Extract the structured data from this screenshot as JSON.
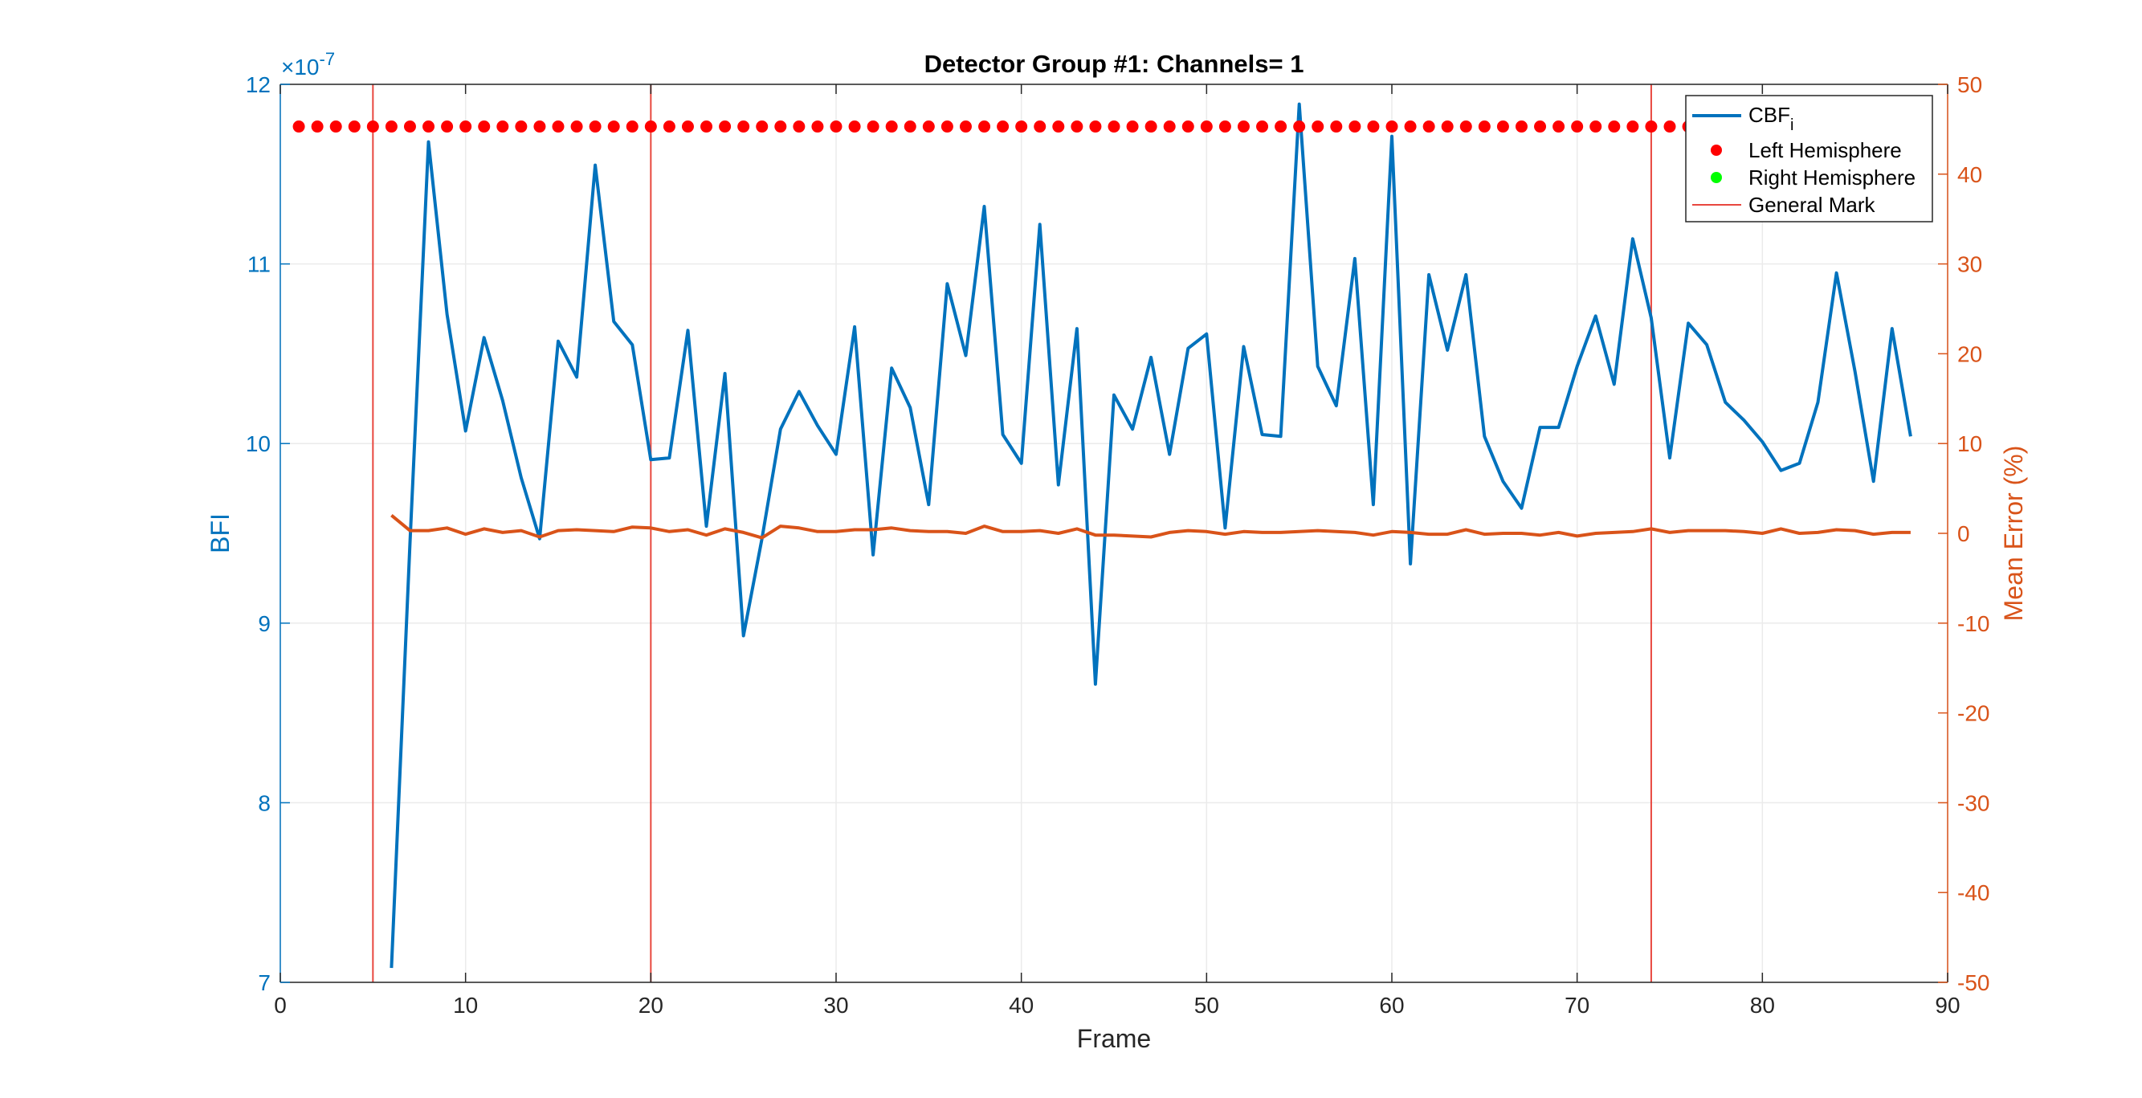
{
  "chart_data": {
    "type": "line",
    "title": "Detector Group #1: Channels= 1",
    "xlabel": "Frame",
    "xlim": [
      0,
      90
    ],
    "x_ticks": [
      "0",
      "10",
      "20",
      "30",
      "40",
      "50",
      "60",
      "70",
      "80",
      "90"
    ],
    "left_axis": {
      "label": "BFI",
      "ylim": [
        7,
        12
      ],
      "ticks": [
        "7",
        "8",
        "9",
        "10",
        "11",
        "12"
      ],
      "exponent_base": "×10",
      "exponent_power": "-7",
      "color": "#0072BD"
    },
    "right_axis": {
      "label": "Mean Error (%)",
      "ylim": [
        -50,
        50
      ],
      "ticks": [
        "-50",
        "-40",
        "-30",
        "-20",
        "-10",
        "0",
        "10",
        "20",
        "30",
        "40",
        "50"
      ],
      "color": "#D95319"
    },
    "grid": true,
    "legend_position": "top-right",
    "legend": {
      "cbf_base": "CBF",
      "cbf_sub": "i",
      "left_hemisphere": "Left Hemisphere",
      "right_hemisphere": "Right Hemisphere",
      "general_mark": "General Mark"
    },
    "series": [
      {
        "key": "cbf",
        "axis": "left",
        "color": "#0072BD",
        "x": [
          6,
          7,
          8,
          9,
          10,
          11,
          12,
          13,
          14,
          15,
          16,
          17,
          18,
          19,
          20,
          21,
          22,
          23,
          24,
          25,
          26,
          27,
          28,
          29,
          30,
          31,
          32,
          33,
          34,
          35,
          36,
          37,
          38,
          39,
          40,
          41,
          42,
          43,
          44,
          45,
          46,
          47,
          48,
          49,
          50,
          51,
          52,
          53,
          54,
          55,
          56,
          57,
          58,
          59,
          60,
          61,
          62,
          63,
          64,
          65,
          66,
          67,
          68,
          69,
          70,
          71,
          72,
          73,
          74,
          75,
          76,
          77,
          78,
          79,
          80,
          81,
          82,
          83,
          84,
          85,
          86,
          87,
          88
        ],
        "values": [
          7.08,
          9.45,
          11.68,
          10.72,
          10.07,
          10.59,
          10.24,
          9.81,
          9.47,
          10.57,
          10.37,
          11.55,
          10.68,
          10.55,
          9.91,
          9.92,
          10.63,
          9.54,
          10.39,
          8.93,
          9.47,
          10.08,
          10.29,
          10.1,
          9.94,
          10.65,
          9.38,
          10.42,
          10.2,
          9.66,
          10.89,
          10.49,
          11.32,
          10.05,
          9.89,
          11.22,
          9.77,
          10.64,
          8.66,
          10.27,
          10.08,
          10.48,
          9.94,
          10.53,
          10.61,
          9.53,
          10.54,
          10.05,
          10.04,
          11.89,
          10.43,
          10.21,
          11.03,
          9.66,
          11.71,
          9.33,
          10.94,
          10.52,
          10.94,
          10.04,
          9.79,
          9.64,
          10.09,
          10.09,
          10.43,
          10.71,
          10.33,
          11.14,
          10.7,
          9.92,
          10.67,
          10.55,
          10.23,
          10.13,
          10.01,
          9.85,
          9.89,
          10.23,
          10.95,
          10.4,
          9.79,
          10.64,
          10.04
        ]
      },
      {
        "key": "mean_error",
        "axis": "right",
        "color": "#D95319",
        "x": [
          6,
          7,
          8,
          9,
          10,
          11,
          12,
          13,
          14,
          15,
          16,
          17,
          18,
          19,
          20,
          21,
          22,
          23,
          24,
          25,
          26,
          27,
          28,
          29,
          30,
          31,
          32,
          33,
          34,
          35,
          36,
          37,
          38,
          39,
          40,
          41,
          42,
          43,
          44,
          45,
          46,
          47,
          48,
          49,
          50,
          51,
          52,
          53,
          54,
          55,
          56,
          57,
          58,
          59,
          60,
          61,
          62,
          63,
          64,
          65,
          66,
          67,
          68,
          69,
          70,
          71,
          72,
          73,
          74,
          75,
          76,
          77,
          78,
          79,
          80,
          81,
          82,
          83,
          84,
          85,
          86,
          87,
          88
        ],
        "values": [
          2.0,
          0.3,
          0.3,
          0.6,
          -0.1,
          0.5,
          0.1,
          0.3,
          -0.4,
          0.3,
          0.4,
          0.3,
          0.2,
          0.7,
          0.6,
          0.2,
          0.4,
          -0.2,
          0.5,
          0.1,
          -0.5,
          0.8,
          0.6,
          0.2,
          0.2,
          0.4,
          0.4,
          0.6,
          0.3,
          0.2,
          0.2,
          0.0,
          0.8,
          0.2,
          0.2,
          0.3,
          0.0,
          0.5,
          -0.2,
          -0.2,
          -0.3,
          -0.4,
          0.1,
          0.3,
          0.2,
          -0.1,
          0.2,
          0.1,
          0.1,
          0.2,
          0.3,
          0.2,
          0.1,
          -0.2,
          0.2,
          0.1,
          -0.1,
          -0.1,
          0.4,
          -0.1,
          0.0,
          0.0,
          -0.2,
          0.1,
          -0.3,
          0.0,
          0.1,
          0.2,
          0.5,
          0.1,
          0.3,
          0.3,
          0.3,
          0.2,
          0.0,
          0.5,
          0.0,
          0.1,
          0.4,
          0.3,
          -0.1,
          0.1,
          0.1
        ]
      },
      {
        "key": "left_hemisphere",
        "axis": "right",
        "color": "#FF0000",
        "marker": "dot",
        "x_start": 1,
        "x_end": 76,
        "value": 45.3
      }
    ],
    "general_mark_lines": {
      "x": [
        5,
        20,
        74
      ],
      "color": "#E8473F"
    }
  }
}
